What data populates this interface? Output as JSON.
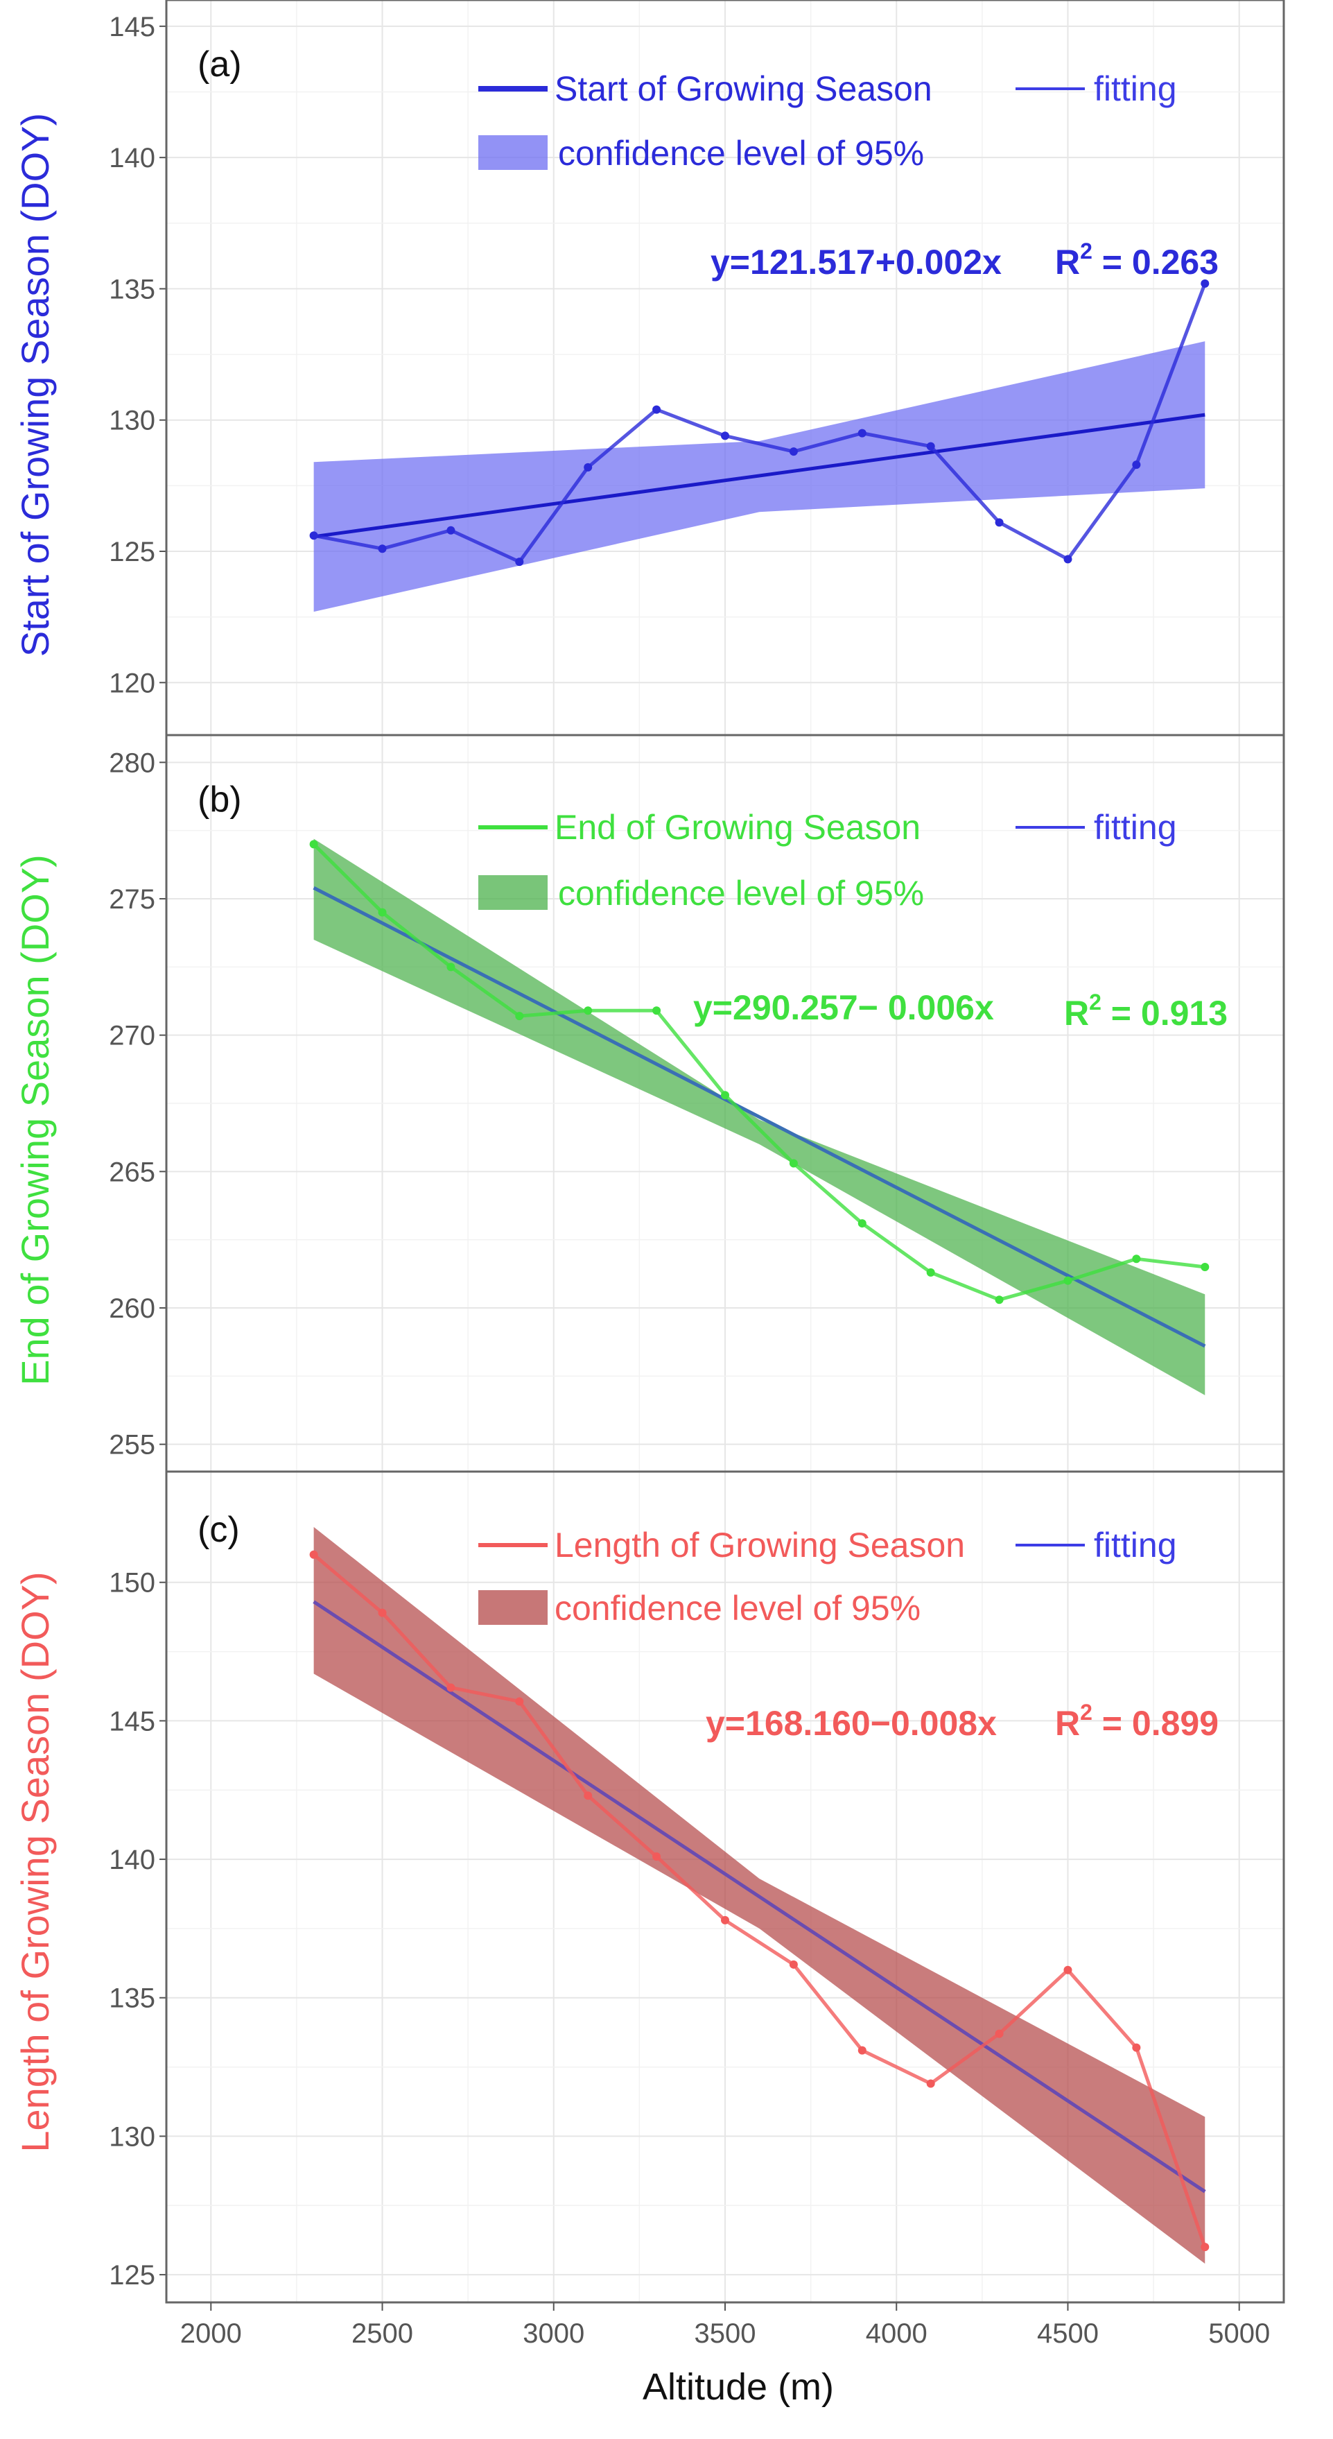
{
  "chart_data": [
    {
      "type": "line",
      "panel_label": "(a)",
      "ylabel": "Start  of Growing Season (DOY)",
      "color": "#2B2BD9",
      "band_color": "#6E6EF2",
      "ylim": [
        118,
        146
      ],
      "yticks": [
        120,
        125,
        130,
        135,
        140,
        145
      ],
      "ytick_labels": [
        "120",
        "125",
        "130",
        "135",
        "140",
        "145"
      ],
      "x": [
        2300,
        2500,
        2700,
        2900,
        3100,
        3300,
        3500,
        3700,
        3900,
        4100,
        4300,
        4500,
        4700,
        4900
      ],
      "values": [
        125.6,
        125.1,
        125.8,
        124.6,
        128.2,
        130.4,
        129.4,
        128.8,
        129.5,
        129.0,
        126.1,
        124.7,
        128.3,
        135.2
      ],
      "fit": {
        "x": [
          2300,
          4900
        ],
        "y": [
          125.56,
          130.2
        ]
      },
      "band": {
        "x": [
          2300,
          3600,
          4900
        ],
        "upper": [
          128.4,
          129.2,
          133.0
        ],
        "lower": [
          122.7,
          126.5,
          127.4
        ]
      },
      "legend": {
        "series": "Start of Growing Season",
        "fit": "fitting",
        "band": "confidence level of 95%"
      },
      "equation": "y=121.517+0.002x",
      "r2_label": "R",
      "r2_sup": "2",
      "r2_value": " = 0.263",
      "legend_fit_color": "#3D3DE6"
    },
    {
      "type": "line",
      "panel_label": "(b)",
      "ylabel": "End  of Growing Season (DOY)",
      "color": "#3FE03F",
      "band_color": "#4CB14C",
      "ylim": [
        254,
        281
      ],
      "yticks": [
        255,
        260,
        265,
        270,
        275,
        280
      ],
      "ytick_labels": [
        "255",
        "260",
        "265",
        "270",
        "275",
        "280"
      ],
      "x": [
        2300,
        2500,
        2700,
        2900,
        3100,
        3300,
        3500,
        3700,
        3900,
        4100,
        4300,
        4500,
        4700,
        4900
      ],
      "values": [
        277.0,
        274.5,
        272.5,
        270.7,
        270.9,
        270.9,
        267.8,
        265.3,
        263.1,
        261.3,
        260.3,
        261.0,
        261.8,
        261.5
      ],
      "fit": {
        "x": [
          2300,
          4900
        ],
        "y": [
          275.4,
          258.6
        ]
      },
      "band": {
        "x": [
          2300,
          3600,
          4900
        ],
        "upper": [
          277.2,
          266.9,
          260.5
        ],
        "lower": [
          273.5,
          266.0,
          256.8
        ]
      },
      "legend": {
        "series": "End of Growing Season",
        "fit": "fitting",
        "band": "confidence level of 95%"
      },
      "equation": "y=290.257− 0.006x",
      "r2_label": "R",
      "r2_sup": "2",
      "r2_value": " = 0.913",
      "legend_fit_color": "#3D3DE6",
      "fit_color": "#3A6FB5"
    },
    {
      "type": "line",
      "panel_label": "(c)",
      "ylabel": "Length of Growing Season (DOY)",
      "color": "#F25A5A",
      "band_color": "#B44A4A",
      "ylim": [
        124,
        154
      ],
      "yticks": [
        125,
        130,
        135,
        140,
        145,
        150
      ],
      "ytick_labels": [
        "125",
        "130",
        "135",
        "140",
        "145",
        "150"
      ],
      "x": [
        2300,
        2500,
        2700,
        2900,
        3100,
        3300,
        3500,
        3700,
        3900,
        4100,
        4300,
        4500,
        4700,
        4900
      ],
      "values": [
        151.0,
        148.9,
        146.2,
        145.7,
        142.3,
        140.1,
        137.8,
        136.2,
        133.1,
        131.9,
        133.7,
        136.0,
        133.2,
        126.0
      ],
      "fit": {
        "x": [
          2300,
          4900
        ],
        "y": [
          149.3,
          128.0
        ]
      },
      "band": {
        "x": [
          2300,
          3600,
          4900
        ],
        "upper": [
          152.0,
          139.3,
          130.7
        ],
        "lower": [
          146.7,
          137.5,
          125.4
        ]
      },
      "legend": {
        "series": "Length of Growing Season",
        "fit": "fitting",
        "band": "confidence level of 95%"
      },
      "equation": "y=168.160−0.008x",
      "r2_label": "R",
      "r2_sup": "2",
      "r2_value": " = 0.899",
      "legend_fit_color": "#3D3DE6",
      "fit_color": "#6A4CB0"
    }
  ],
  "xaxis": {
    "label": "Altitude (m)",
    "xlim": [
      1870,
      5130
    ],
    "xticks": [
      2000,
      2500,
      3000,
      3500,
      4000,
      4500,
      5000
    ],
    "xtick_labels": [
      "2000",
      "2500",
      "3000",
      "3500",
      "4000",
      "4500",
      "5000"
    ]
  },
  "fit_color_default": "#1A1AC8"
}
